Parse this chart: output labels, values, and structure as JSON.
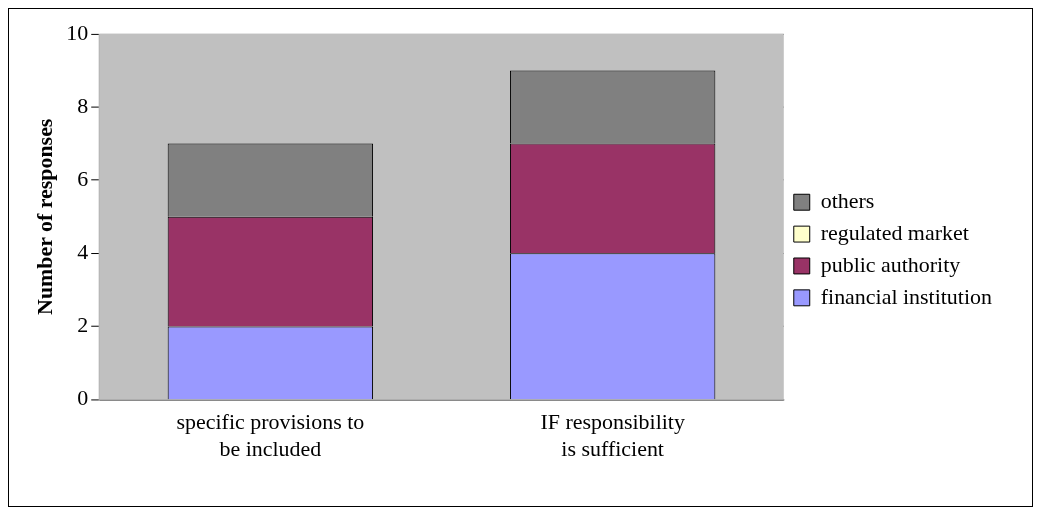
{
  "chart_data": {
    "type": "bar",
    "stacked": true,
    "ylabel": "Number of responses",
    "categories": [
      "specific provisions to be included",
      "IF responsibility is sufficient"
    ],
    "series": [
      {
        "name": "financial institution",
        "color": "#9999ff",
        "values": [
          2,
          4
        ]
      },
      {
        "name": "public authority",
        "color": "#993366",
        "values": [
          3,
          3
        ]
      },
      {
        "name": "regulated market",
        "color": "#ffffcc",
        "values": [
          0,
          0
        ]
      },
      {
        "name": "others",
        "color": "#808080",
        "values": [
          2,
          2
        ]
      }
    ],
    "ylim": [
      0,
      10
    ],
    "yticks": [
      0,
      2,
      4,
      6,
      8,
      10
    ],
    "grid": "y",
    "legend": "right"
  }
}
